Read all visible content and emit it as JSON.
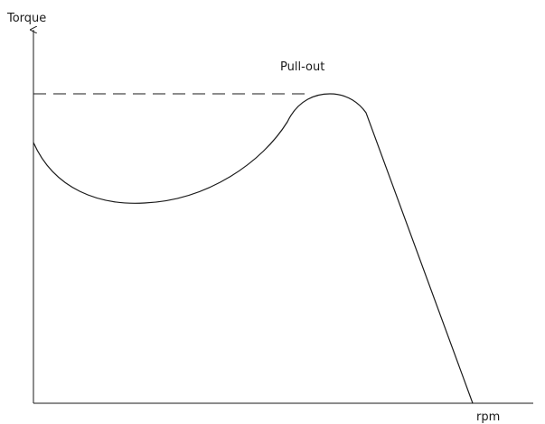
{
  "axes": {
    "y_label": "Torque",
    "x_label": "rpm"
  },
  "annotation": "Pull-out"
}
